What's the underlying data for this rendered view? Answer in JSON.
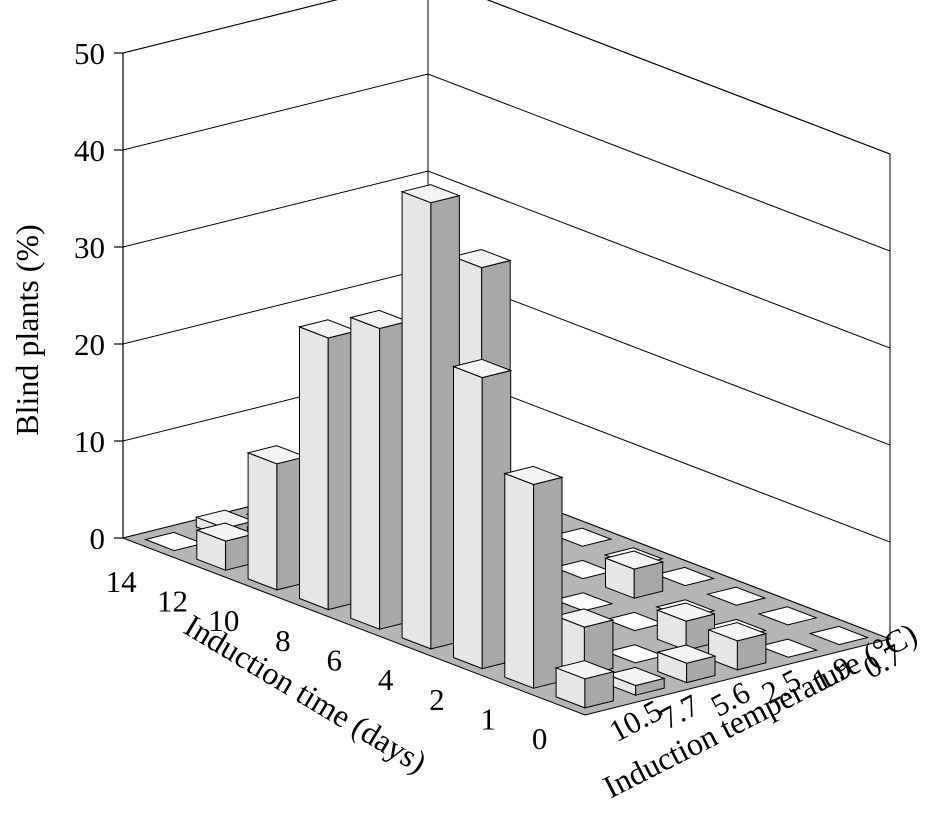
{
  "chart_data": {
    "type": "bar3d",
    "title": "",
    "zlabel": "Blind plants (%)",
    "ylabel": "Induction time (days)",
    "xlabel": "Induction temperature (°C)",
    "zlim": [
      0,
      50
    ],
    "z_ticks": [
      "0",
      "10",
      "20",
      "30",
      "40",
      "50"
    ],
    "time_ticks": [
      "14",
      "12",
      "10",
      "8",
      "6",
      "4",
      "2",
      "1",
      "0"
    ],
    "temperature_ticks": [
      "10.5",
      "7.7",
      "5.6",
      "2.5",
      "1.9",
      "0.7"
    ],
    "grid": true,
    "colors": {
      "floor": "#b5b5b5",
      "bar_front": "#e6e6e6",
      "bar_side": "#a8a8a8",
      "bar_top": "#f4f4f4",
      "outline": "#000000",
      "grid_line": "#000000"
    },
    "values": [
      [
        0,
        1,
        0,
        0,
        0,
        0
      ],
      [
        3,
        2,
        0,
        0,
        0,
        0
      ],
      [
        13,
        4,
        6,
        7,
        4,
        0
      ],
      [
        28,
        21,
        3,
        1,
        0,
        0
      ],
      [
        31,
        4,
        0,
        0,
        0,
        0
      ],
      [
        46,
        38,
        10,
        0,
        3,
        0
      ],
      [
        30,
        2,
        0,
        0,
        0,
        0
      ],
      [
        21,
        5,
        0,
        3,
        0,
        0
      ],
      [
        3,
        1,
        2,
        3,
        0,
        0
      ]
    ]
  }
}
